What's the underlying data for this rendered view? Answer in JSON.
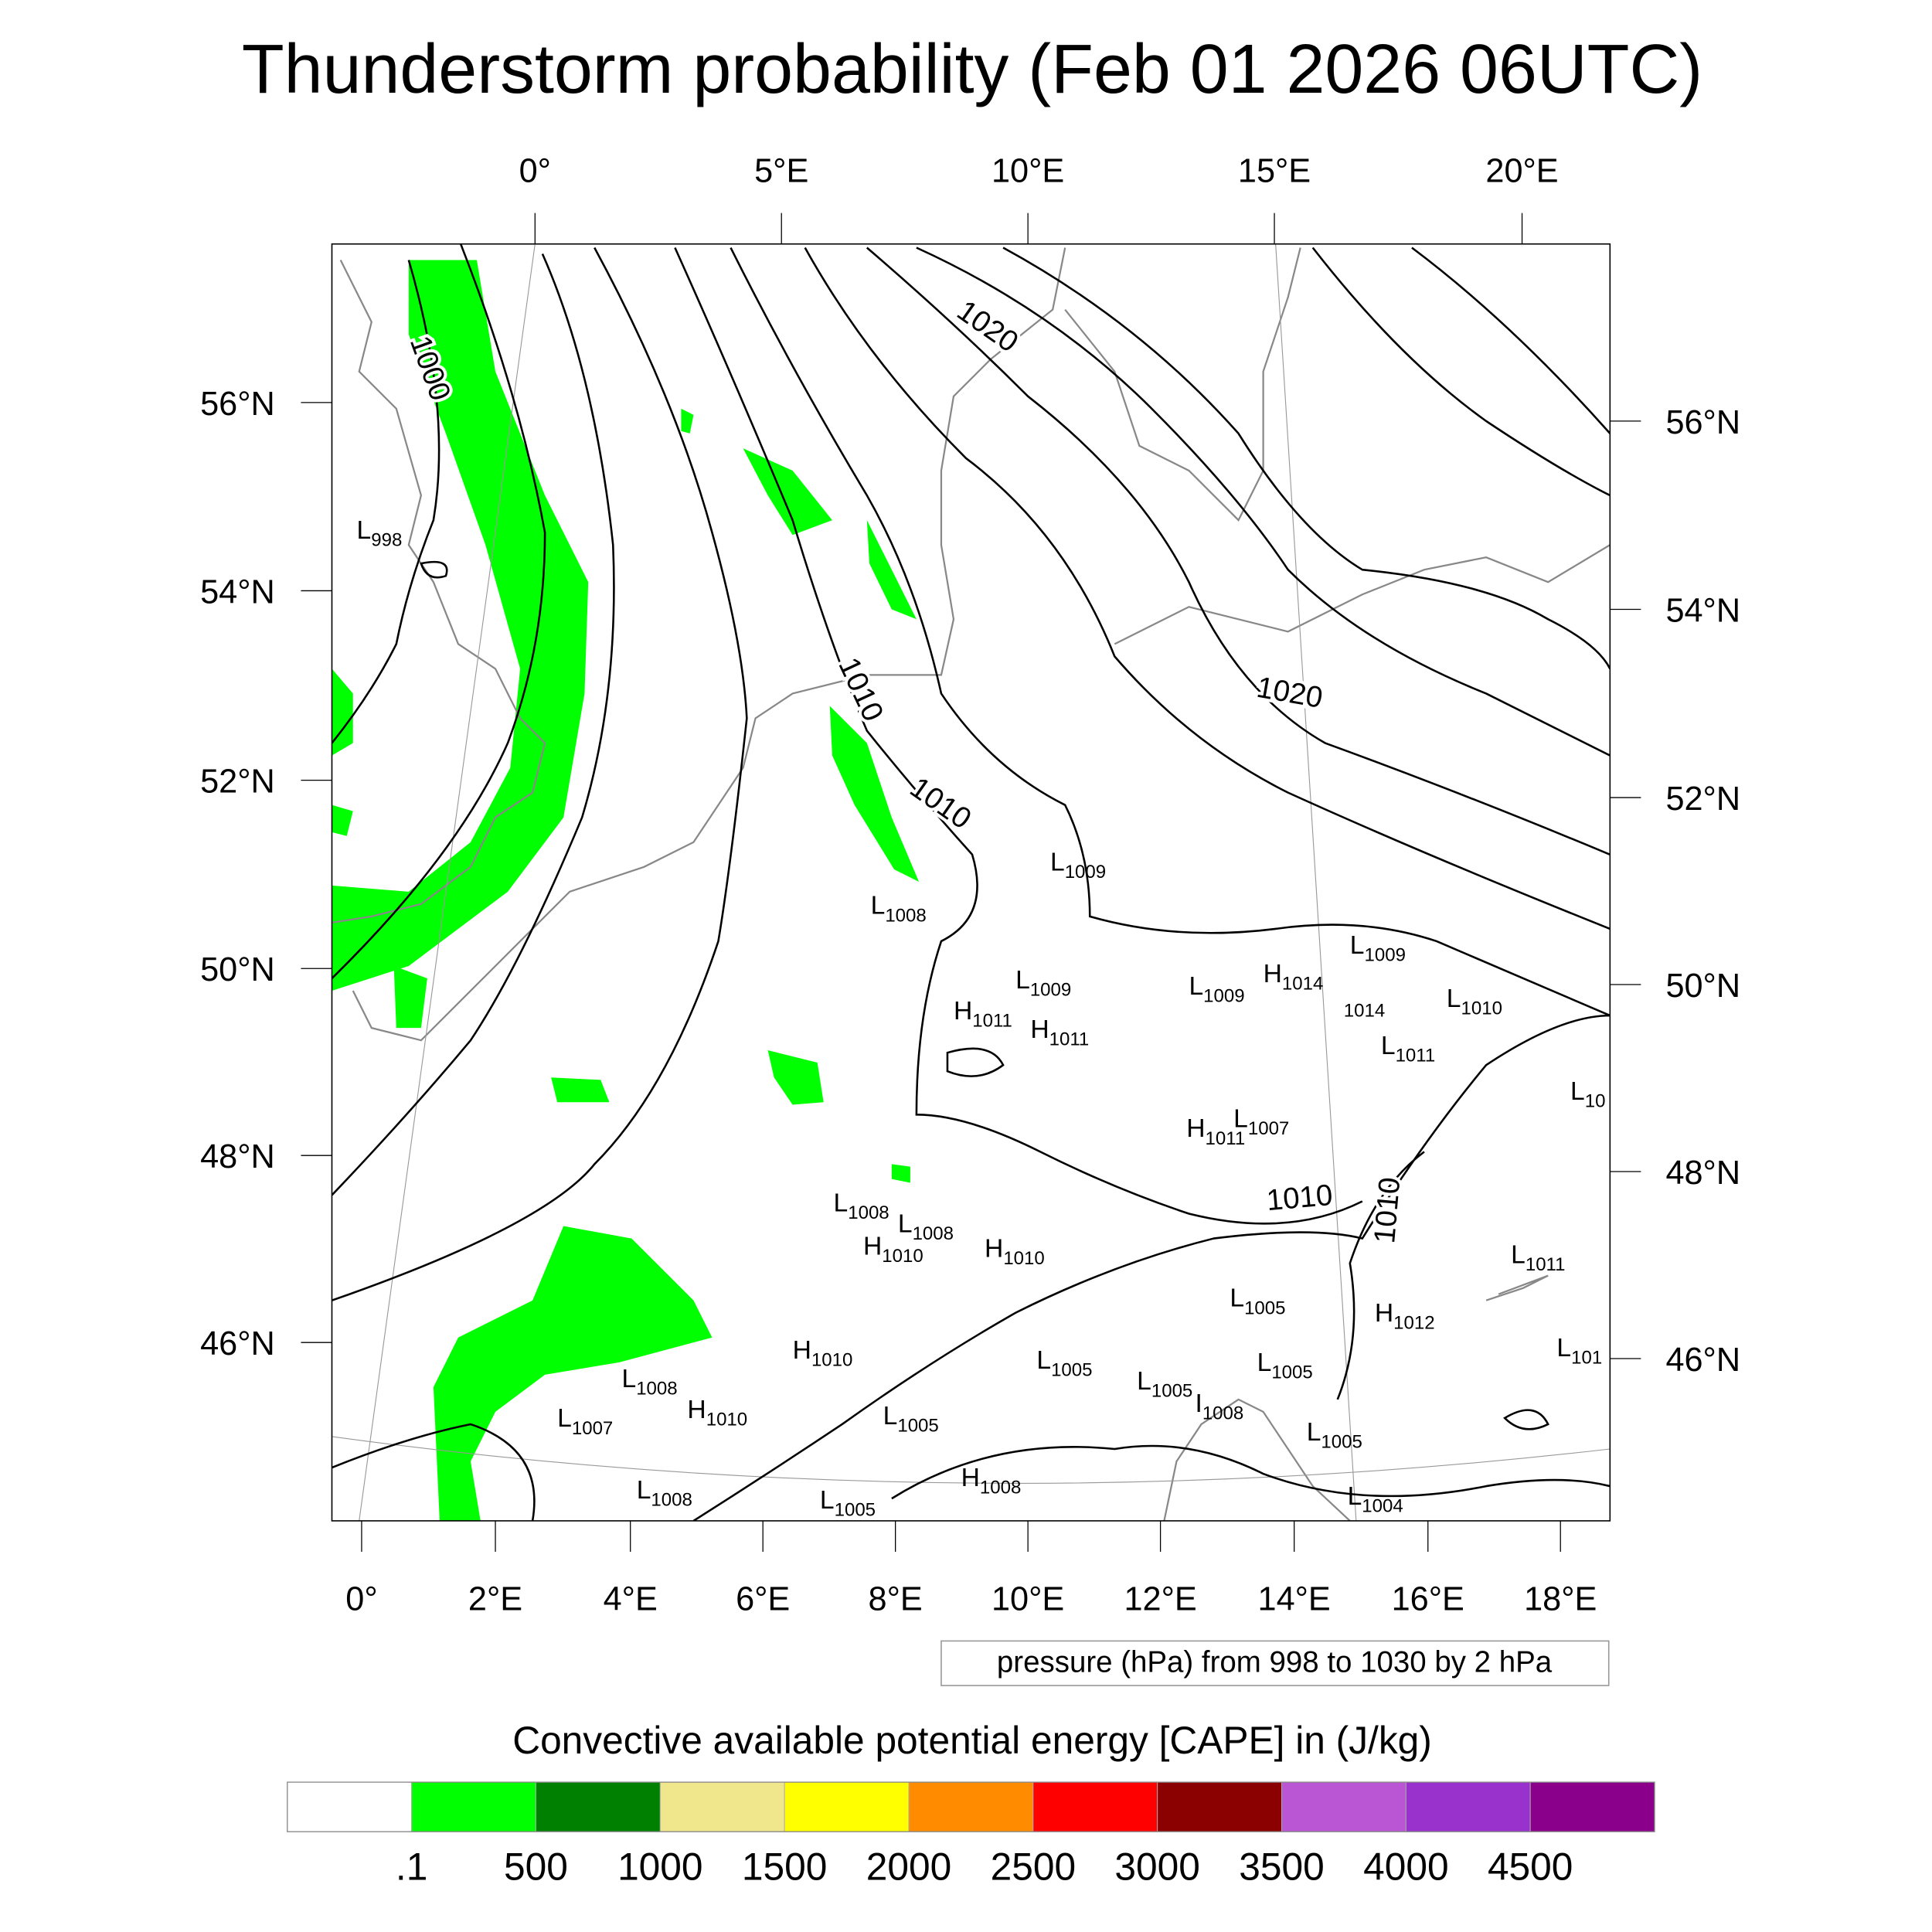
{
  "title": "Thunderstorm probability (Feb 01 2026 06UTC)",
  "chart_data": {
    "type": "heatmap",
    "title": "Thunderstorm probability (Feb 01 2026 06UTC)",
    "map_extent": {
      "lon": [
        -0.3,
        19
      ],
      "lat": [
        44.2,
        57.5
      ]
    },
    "top_lon_ticks": [
      "0°",
      "5°E",
      "10°E",
      "15°E",
      "20°E"
    ],
    "bottom_lon_ticks": [
      "0°",
      "2°E",
      "4°E",
      "6°E",
      "8°E",
      "10°E",
      "12°E",
      "14°E",
      "16°E",
      "18°E"
    ],
    "left_lat_ticks": [
      "56°N",
      "54°N",
      "52°N",
      "50°N",
      "48°N",
      "46°N"
    ],
    "right_lat_ticks": [
      "56°N",
      "54°N",
      "52°N",
      "50°N",
      "48°N",
      "46°N"
    ],
    "contour_info": "pressure (hPa) from 998 to 1030 by 2 hPa",
    "contour_labels": [
      "1000",
      "1010",
      "1010",
      "1020",
      "1020",
      "1010",
      "1010"
    ],
    "pressure_centers": [
      {
        "t": "L",
        "v": "998"
      },
      {
        "t": "L",
        "v": "1008"
      },
      {
        "t": "L",
        "v": "1009"
      },
      {
        "t": "L",
        "v": "1009"
      },
      {
        "t": "H",
        "v": "1011"
      },
      {
        "t": "H",
        "v": "1011"
      },
      {
        "t": "L",
        "v": "1009"
      },
      {
        "t": "H",
        "v": "1014"
      },
      {
        "t": "L",
        "v": "1009"
      },
      {
        "t": "",
        "v": "1014"
      },
      {
        "t": "L",
        "v": "1010"
      },
      {
        "t": "L",
        "v": "1011"
      },
      {
        "t": "L",
        "v": "10"
      },
      {
        "t": "H",
        "v": "1011"
      },
      {
        "t": "L",
        "v": "1007"
      },
      {
        "t": "L",
        "v": "1008"
      },
      {
        "t": "L",
        "v": "1008"
      },
      {
        "t": "H",
        "v": "1010"
      },
      {
        "t": "H",
        "v": "1010"
      },
      {
        "t": "L",
        "v": "1005"
      },
      {
        "t": "H",
        "v": "1012"
      },
      {
        "t": "L",
        "v": "1011"
      },
      {
        "t": "L",
        "v": "101"
      },
      {
        "t": "H",
        "v": "1010"
      },
      {
        "t": "L",
        "v": "1005"
      },
      {
        "t": "L",
        "v": "1005"
      },
      {
        "t": "L",
        "v": "1005"
      },
      {
        "t": "I",
        "v": "1008"
      },
      {
        "t": "L",
        "v": "1008"
      },
      {
        "t": "H",
        "v": "1010"
      },
      {
        "t": "L",
        "v": "1007"
      },
      {
        "t": "L",
        "v": "1005"
      },
      {
        "t": "L",
        "v": "1005"
      },
      {
        "t": "H",
        "v": "1008"
      },
      {
        "t": "L",
        "v": "1008"
      },
      {
        "t": "L",
        "v": "1005"
      },
      {
        "t": "L",
        "v": "1004"
      }
    ],
    "colorbar": {
      "title": "Convective available potential energy [CAPE] in (J/kg)",
      "labels": [
        ".1",
        "500",
        "1000",
        "1500",
        "2000",
        "2500",
        "3000",
        "3500",
        "4000",
        "4500"
      ],
      "colors": [
        "#ffffff",
        "#00ff00",
        "#008000",
        "#f0e68c",
        "#ffff00",
        "#ff8c00",
        "#ff0000",
        "#8b0000",
        "#ba55d3",
        "#9932cc",
        "#8b008b"
      ]
    },
    "cape_present_color": "#00ff00"
  }
}
